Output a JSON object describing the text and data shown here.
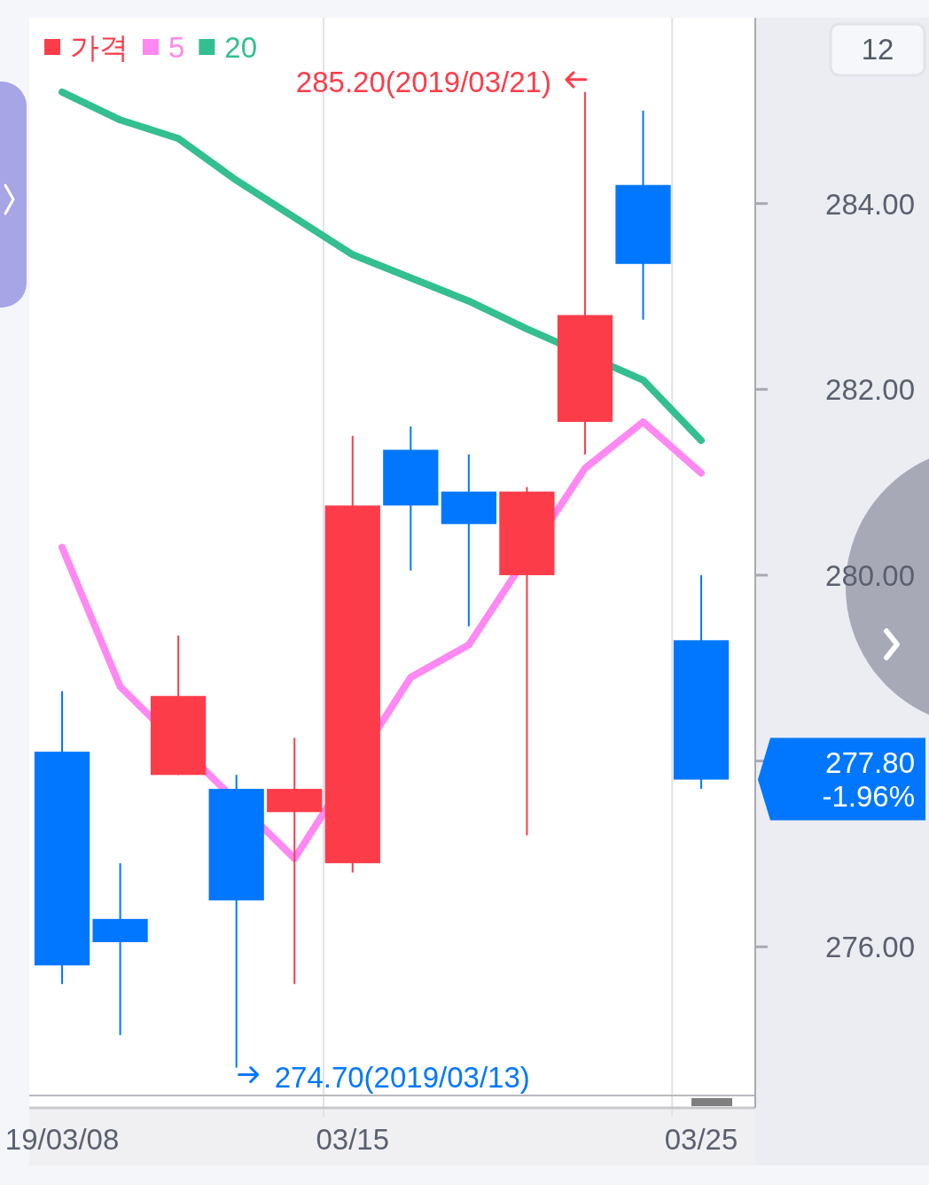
{
  "chart_data": {
    "type": "candlestick",
    "categories": [
      "19/03/08",
      null,
      null,
      null,
      null,
      "03/15",
      null,
      null,
      null,
      null,
      null,
      "03/25"
    ],
    "series": [
      {
        "name": "가격",
        "type": "candlestick",
        "color": "#fd3c4a",
        "colors": [
          "#0077fe",
          "#0077fe",
          "#fd3c4a",
          "#0077fe",
          "#fd3c4a",
          "#fd3c4a",
          "#0077fe",
          "#0077fe",
          "#fd3c4a",
          "#fd3c4a",
          "#0077fe",
          "#0077fe"
        ],
        "ohlc": [
          [
            278.1,
            278.75,
            275.6,
            275.8
          ],
          [
            276.3,
            276.9,
            275.05,
            276.05
          ],
          [
            277.85,
            279.35,
            277.85,
            278.7
          ],
          [
            277.7,
            277.85,
            274.7,
            276.5
          ],
          [
            277.45,
            278.25,
            275.6,
            277.7
          ],
          [
            276.9,
            281.5,
            276.8,
            280.75
          ],
          [
            281.35,
            281.6,
            280.05,
            280.75
          ],
          [
            280.9,
            281.3,
            279.45,
            280.55
          ],
          [
            280.0,
            280.95,
            277.2,
            280.9
          ],
          [
            281.65,
            285.2,
            281.3,
            282.8
          ],
          [
            284.2,
            285.0,
            282.75,
            283.35
          ],
          [
            279.3,
            280.0,
            277.7,
            277.8
          ]
        ]
      },
      {
        "name": "5",
        "type": "line",
        "color": "#ff88f2",
        "values": [
          280.3,
          278.8,
          null,
          null,
          276.95,
          null,
          278.9,
          279.25,
          null,
          281.15,
          281.65,
          281.1
        ]
      },
      {
        "name": "20",
        "type": "line",
        "color": "#33bf90",
        "values": [
          285.2,
          284.9,
          284.7,
          284.25,
          283.85,
          283.45,
          283.2,
          282.95,
          282.65,
          null,
          282.1,
          281.45
        ]
      }
    ],
    "ylim": [
      274.4,
      286.0
    ],
    "yticks": [
      {
        "value": 276,
        "label": "276.00"
      },
      {
        "value": 278,
        "label": null
      },
      {
        "value": 280,
        "label": "280.00"
      },
      {
        "value": 282,
        "label": "282.00"
      },
      {
        "value": 284,
        "label": "284.00"
      }
    ],
    "grid": "x",
    "legend": "top left",
    "annotations": [
      "285.20(2019/03/21)",
      "274.70(2019/03/13)",
      "277.80",
      "-1.96%",
      "12"
    ]
  }
}
